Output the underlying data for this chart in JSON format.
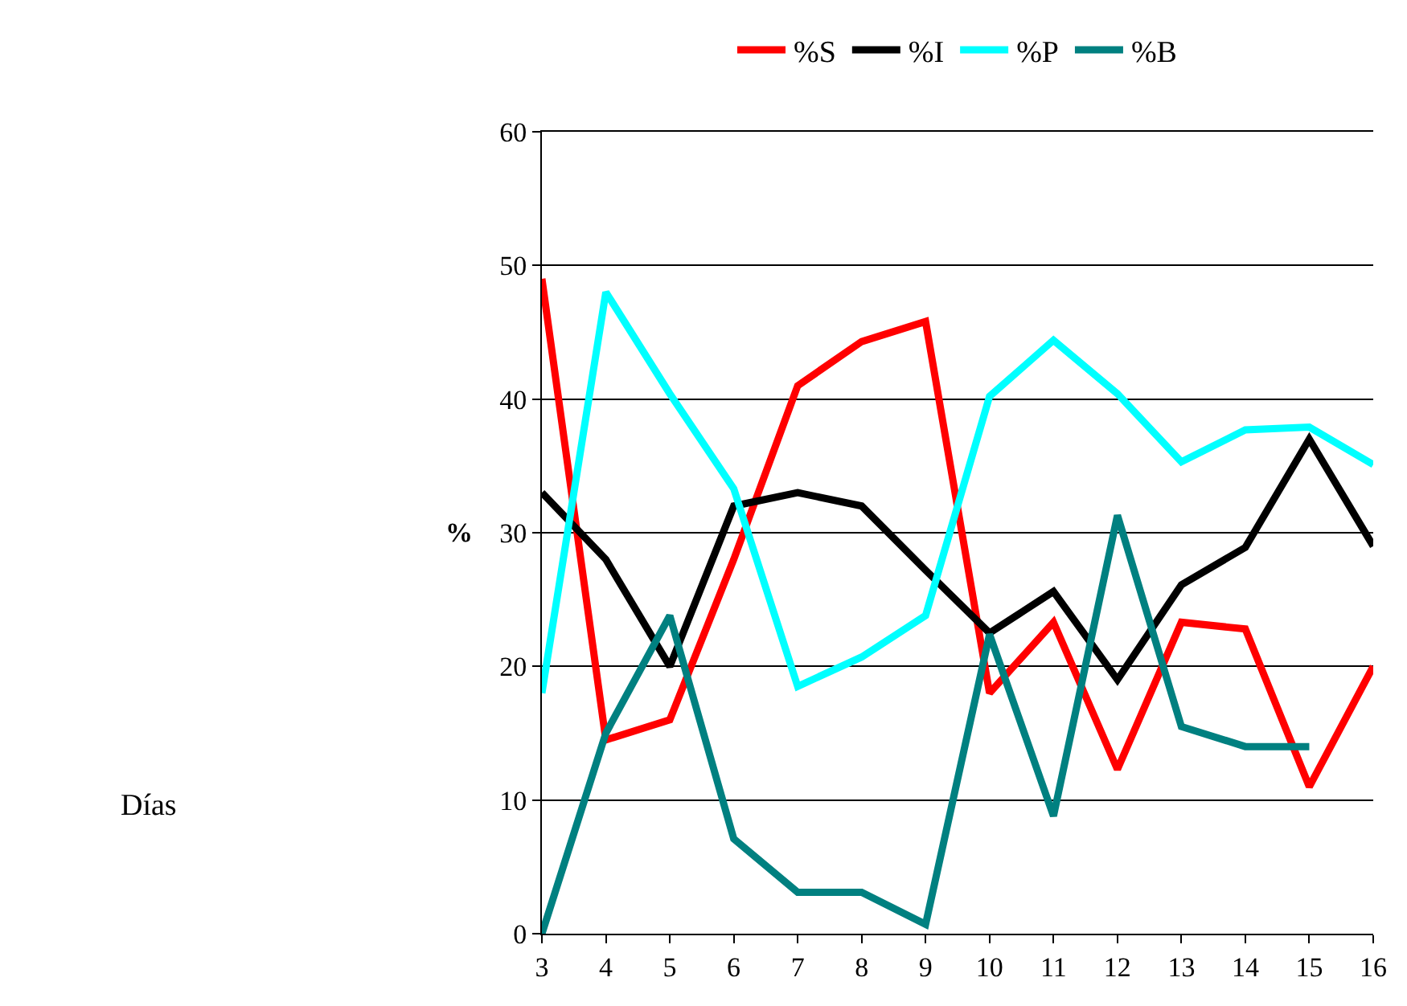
{
  "chart_data": {
    "type": "line",
    "annotations": [
      "Días"
    ],
    "ylabel": "%",
    "x": [
      3,
      4,
      5,
      6,
      7,
      8,
      9,
      10,
      11,
      12,
      13,
      14,
      15,
      16
    ],
    "series": [
      {
        "name": "%S",
        "color": "#ff0000",
        "values": [
          49,
          14.5,
          16,
          28,
          41,
          44.3,
          45.8,
          18,
          23.3,
          12.3,
          23.3,
          22.8,
          11,
          20
        ]
      },
      {
        "name": "%I",
        "color": "#000000",
        "values": [
          33,
          28,
          20,
          32,
          33,
          32,
          27.2,
          22.5,
          25.6,
          19,
          26.1,
          28.9,
          37,
          29
        ]
      },
      {
        "name": "%P",
        "color": "#00ffff",
        "values": [
          18,
          48,
          40.4,
          33.3,
          18.5,
          20.7,
          23.8,
          40.2,
          44.4,
          40.4,
          35.3,
          37.7,
          37.9,
          35.1
        ]
      },
      {
        "name": "%B",
        "color": "#008080",
        "values": [
          0,
          15,
          23.8,
          7.1,
          3.1,
          3.1,
          0.7,
          22.4,
          8.8,
          31.3,
          15.5,
          14,
          14,
          null
        ]
      }
    ],
    "xlim": [
      3,
      16
    ],
    "xticks": [
      3,
      4,
      5,
      6,
      7,
      8,
      9,
      10,
      11,
      12,
      13,
      14,
      15,
      16
    ],
    "ylim": [
      0,
      60
    ],
    "yticks": [
      0,
      10,
      20,
      30,
      40,
      50,
      60
    ],
    "grid": "y",
    "legend": "top",
    "marker": "none",
    "line_style": "solid"
  }
}
